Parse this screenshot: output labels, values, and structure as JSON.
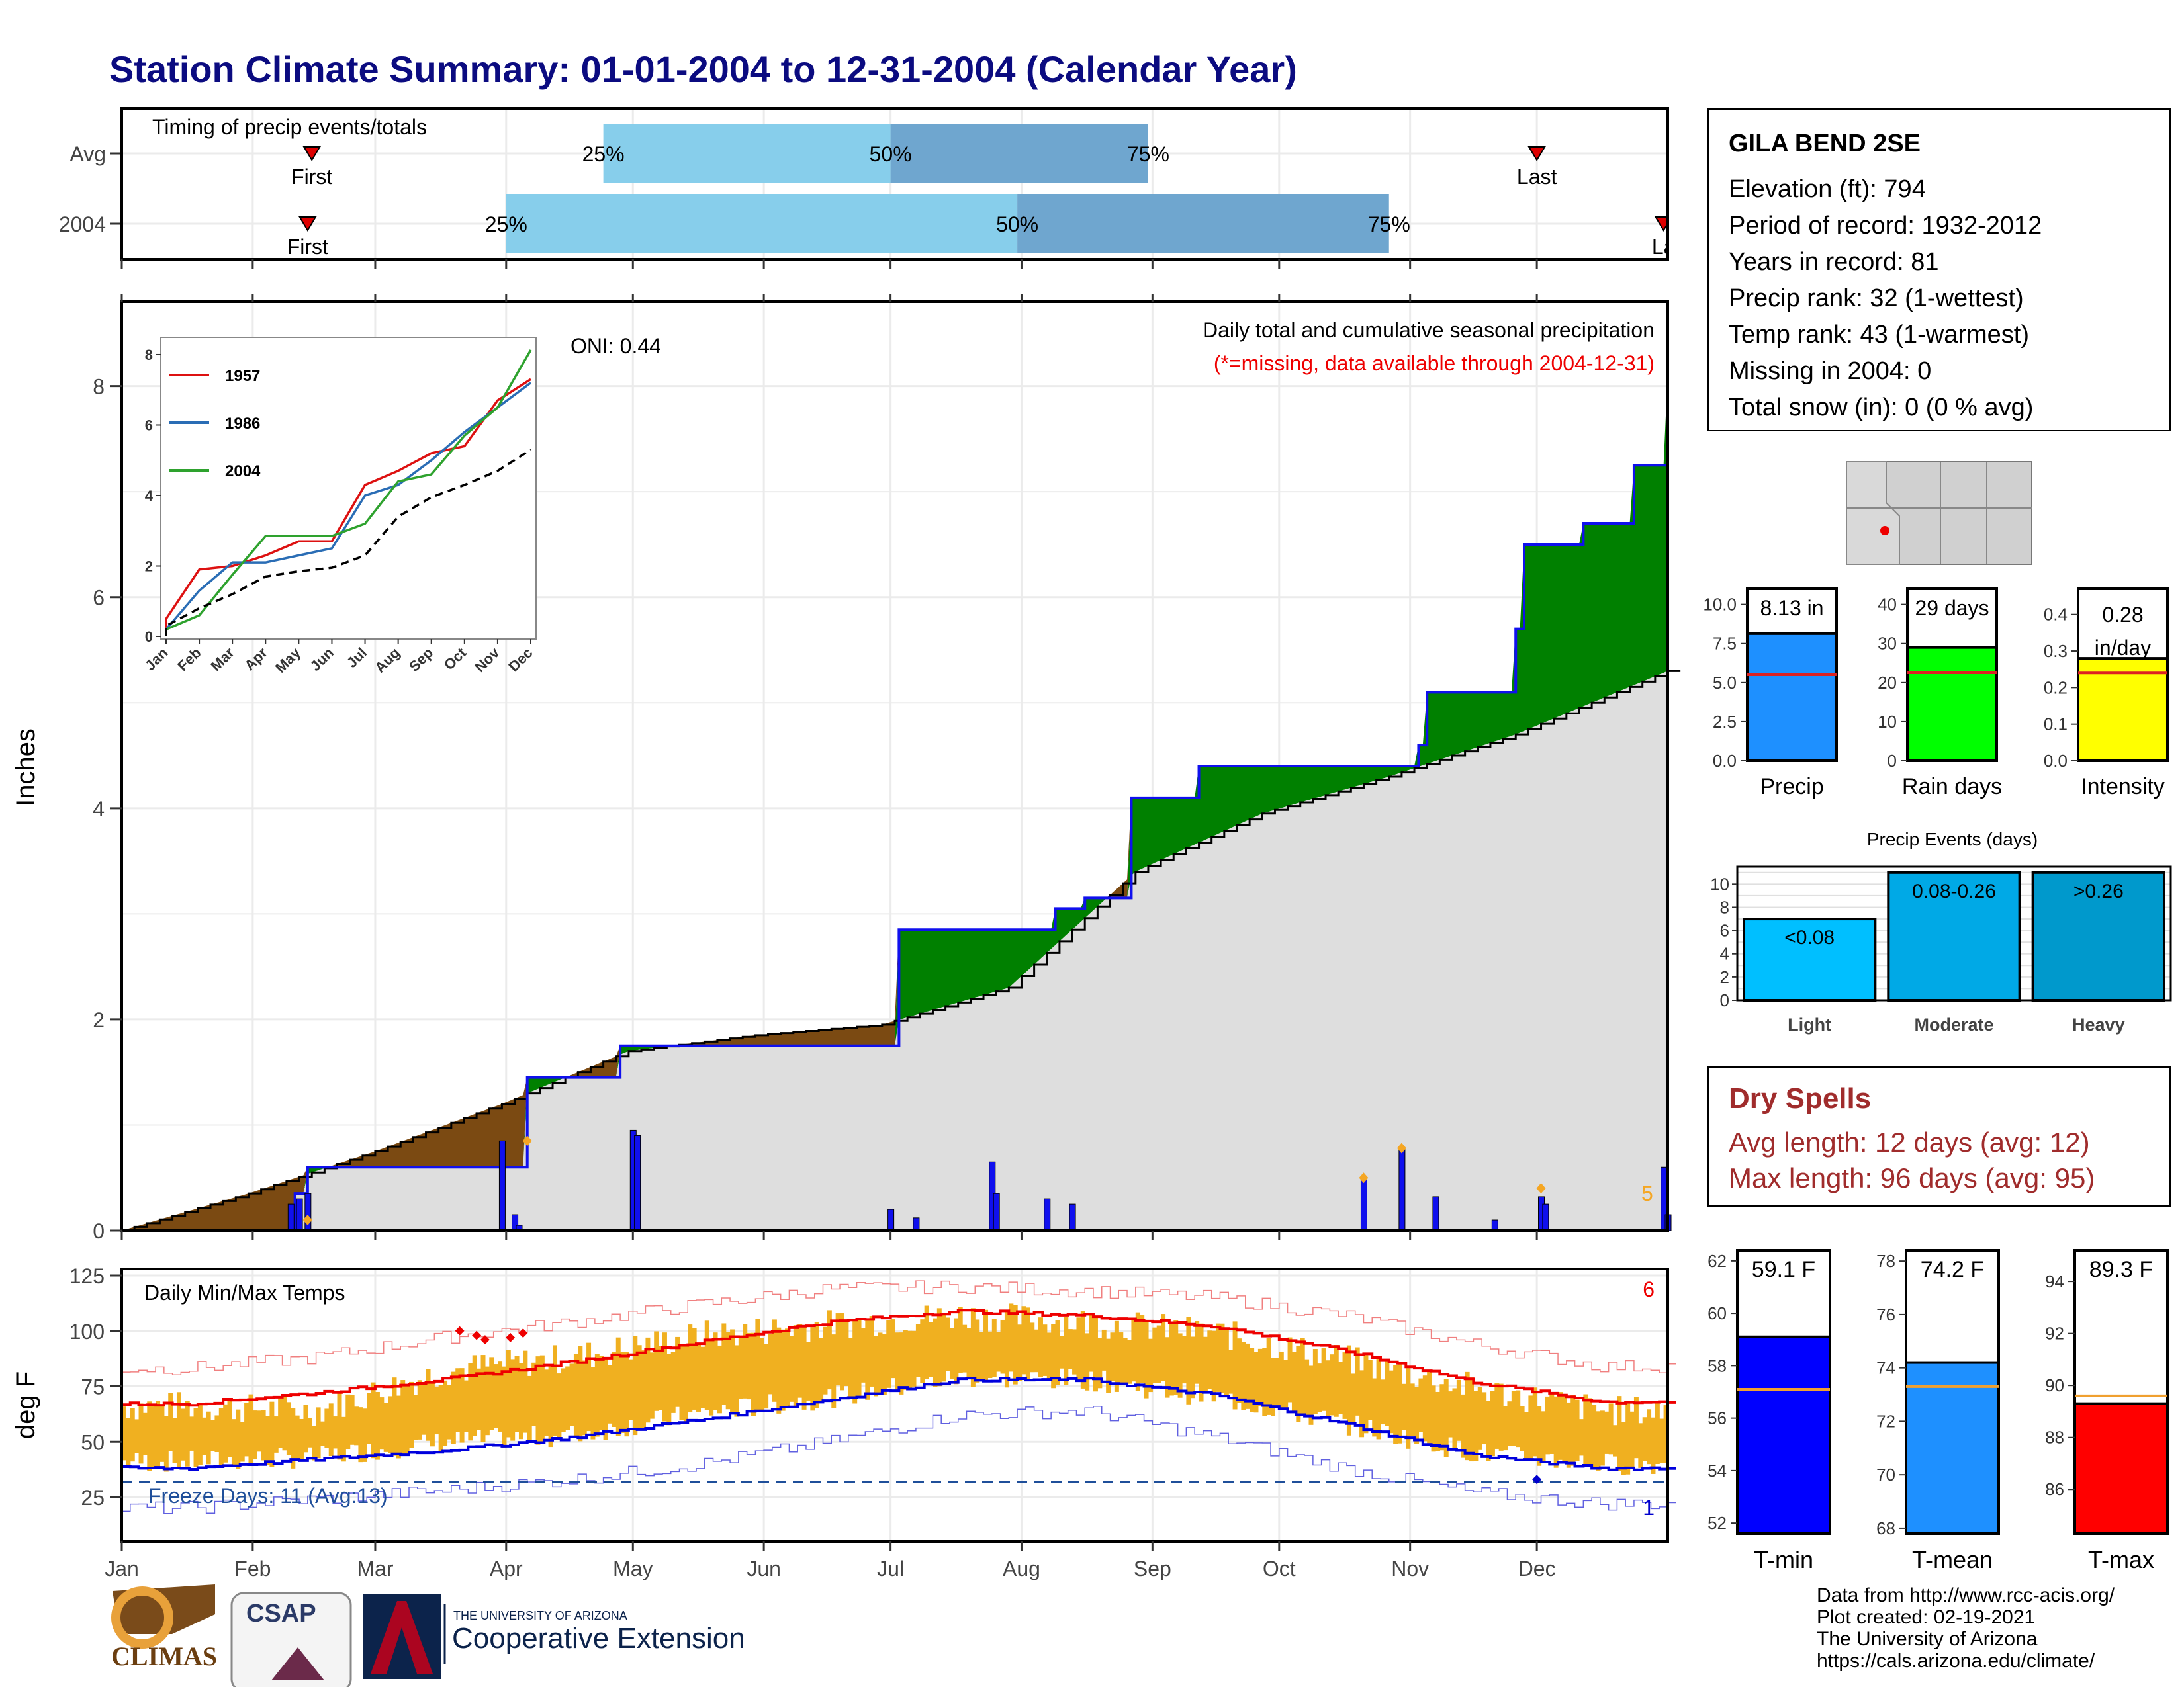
{
  "title": "Station Climate Summary: 01-01-2004 to 12-31-2004 (Calendar Year)",
  "colors": {
    "title": "#0b0b80",
    "green": "#008000",
    "brown": "#7b4a12",
    "gray_fill": "#dedede",
    "blue_bar": "#1010ee",
    "light_blue": "#87ceeb",
    "mid_blue": "#6fa6cf",
    "orange": "#f0b020",
    "red": "#ee0000",
    "navy": "#0000cd"
  },
  "timing": {
    "label": "Timing of precip events/totals",
    "rows": [
      {
        "name": "Avg",
        "first_label": "First",
        "last_label": "Last",
        "first": "Feb 15",
        "last": "Dec 1",
        "p25": "25%",
        "p50": "50%",
        "p75": "75%",
        "d25": "Apr 24",
        "d50": "Jul 1",
        "d75": "Aug 31"
      },
      {
        "name": "2004",
        "first_label": "First",
        "last_label": "La",
        "first": "Feb 14",
        "last": "Dec 31",
        "p25": "25%",
        "p50": "50%",
        "p75": "75%",
        "d25": "Apr 1",
        "d50": "Jul 31",
        "d75": "Oct 27"
      }
    ]
  },
  "station": {
    "name": "GILA BEND 2SE",
    "lines": [
      "Elevation (ft): 794",
      "Period of record: 1932-2012",
      "Years in record: 81",
      "Precip rank: 32 (1-wettest)",
      "Temp rank: 43 (1-warmest)",
      "Missing in 2004: 0",
      "Total snow (in): 0 (0 % avg)"
    ]
  },
  "precip_panel": {
    "ylabel": "Inches",
    "title_line1": "Daily total and cumulative seasonal precipitation",
    "title_line2": "(*=missing, data available through 2004-12-31)",
    "oni": "ONI: 0.44",
    "count_label": "5",
    "y_ticks": [
      "0",
      "2",
      "4",
      "6",
      "8"
    ]
  },
  "inset": {
    "y_ticks": [
      "0",
      "2",
      "4",
      "6",
      "8"
    ],
    "x_ticks": [
      "Jan",
      "Feb",
      "Mar",
      "Apr",
      "May",
      "Jun",
      "Jul",
      "Aug",
      "Sep",
      "Oct",
      "Nov",
      "Dec"
    ],
    "legend": [
      "1957",
      "1986",
      "2004"
    ]
  },
  "temp_panel": {
    "ylabel": "deg F",
    "title": "Daily Min/Max Temps",
    "freeze_label": "Freeze Days: 11 (Avg:13)",
    "hot_count": "6",
    "cold_count": "1",
    "y_ticks": [
      "25",
      "50",
      "75",
      "100",
      "125"
    ],
    "x_ticks": [
      "Jan",
      "Feb",
      "Mar",
      "Apr",
      "May",
      "Jun",
      "Jul",
      "Aug",
      "Sep",
      "Oct",
      "Nov",
      "Dec"
    ]
  },
  "summary_bars": {
    "precip": {
      "label": "Precip",
      "value_label": "8.13 in",
      "ticks": [
        "0.0",
        "2.5",
        "5.0",
        "7.5",
        "10.0"
      ]
    },
    "raindays": {
      "label": "Rain days",
      "value_label": "29 days",
      "ticks": [
        "0",
        "10",
        "20",
        "30",
        "40"
      ]
    },
    "intensity": {
      "label": "Intensity",
      "value_label": "0.28",
      "value_label2": "in/day",
      "ticks": [
        "0.0",
        "0.1",
        "0.2",
        "0.3",
        "0.4"
      ]
    }
  },
  "events": {
    "title": "Precip Events (days)",
    "ticks": [
      "0",
      "2",
      "4",
      "6",
      "8",
      "10"
    ],
    "bars": [
      {
        "label": "Light",
        "value_label": "<0.08"
      },
      {
        "label": "Moderate",
        "value_label": "0.08-0.26"
      },
      {
        "label": "Heavy",
        "value_label": ">0.26"
      }
    ]
  },
  "dry_spells": {
    "title": "Dry Spells",
    "avg": "Avg length: 12 days (avg: 12)",
    "max": "Max length: 96 days (avg: 95)"
  },
  "temp_bars": {
    "tmin": {
      "label": "T-min",
      "value_label": "59.1 F",
      "ticks": [
        "52",
        "54",
        "56",
        "58",
        "60",
        "62"
      ]
    },
    "tmean": {
      "label": "T-mean",
      "value_label": "74.2 F",
      "ticks": [
        "68",
        "70",
        "72",
        "74",
        "76",
        "78"
      ]
    },
    "tmax": {
      "label": "T-max",
      "value_label": "89.3 F",
      "ticks": [
        "86",
        "88",
        "90",
        "92",
        "94"
      ]
    }
  },
  "footer": [
    "Data from http://www.rcc-acis.org/",
    "Plot created: 02-19-2021",
    "The University of Arizona",
    "https://cals.arizona.edu/climate/"
  ],
  "logos": {
    "climas": "CLIMAS",
    "csap": "CSAP",
    "ua_line1": "THE UNIVERSITY OF ARIZONA",
    "ua_line2": "Cooperative Extension"
  },
  "chart_data": [
    {
      "type": "line",
      "title": "Daily total and cumulative seasonal precipitation",
      "ylabel": "Inches",
      "ylim": [
        0,
        8.8
      ],
      "series": [
        {
          "name": "2004 cumulative",
          "x_day": [
            0,
            41,
            44,
            90,
            96,
            118,
            120,
            182,
            184,
            219,
            221,
            226,
            228,
            238,
            239,
            251,
            255,
            307,
            309,
            330,
            332,
            344,
            346,
            356,
            358,
            366
          ],
          "values": [
            0,
            0.35,
            0.6,
            0.6,
            1.45,
            1.75,
            1.75,
            1.75,
            2.85,
            2.85,
            3.05,
            3.05,
            3.15,
            3.15,
            4.1,
            4.1,
            4.4,
            4.6,
            5.1,
            5.7,
            6.5,
            6.5,
            6.7,
            6.7,
            7.25,
            8.13
          ]
        },
        {
          "name": "Average cumulative",
          "x_day": [
            0,
            30,
            60,
            90,
            120,
            150,
            180,
            210,
            240,
            270,
            300,
            330,
            366
          ],
          "values": [
            0,
            0.35,
            0.75,
            1.2,
            1.7,
            1.85,
            1.95,
            2.3,
            3.4,
            3.95,
            4.3,
            4.7,
            5.3
          ]
        }
      ],
      "daily_bars": {
        "x_day": [
          40,
          42,
          44,
          90,
          93,
          94,
          121,
          122,
          182,
          188,
          206,
          207,
          219,
          225,
          294,
          303,
          311,
          325,
          336,
          337,
          365,
          366
        ],
        "values": [
          0.25,
          0.3,
          0.35,
          0.85,
          0.15,
          0.05,
          0.95,
          0.9,
          0.2,
          0.12,
          0.65,
          0.35,
          0.3,
          0.25,
          0.5,
          0.78,
          0.32,
          0.1,
          0.32,
          0.25,
          0.6,
          0.15
        ]
      }
    },
    {
      "type": "line",
      "title": "",
      "x": [
        "Jan",
        "Feb",
        "Mar",
        "Apr",
        "May",
        "Jun",
        "Jul",
        "Aug",
        "Sep",
        "Oct",
        "Nov",
        "Dec"
      ],
      "ylim": [
        0,
        8.2
      ],
      "series": [
        {
          "name": "1957",
          "values": [
            0.5,
            1.9,
            2.0,
            2.3,
            2.7,
            2.7,
            4.3,
            4.7,
            5.2,
            5.4,
            6.7,
            7.3
          ]
        },
        {
          "name": "1986",
          "values": [
            0.2,
            1.3,
            2.1,
            2.1,
            2.3,
            2.5,
            4.0,
            4.3,
            5.0,
            5.8,
            6.5,
            7.2
          ]
        },
        {
          "name": "2004",
          "values": [
            0.2,
            0.6,
            1.75,
            2.85,
            2.85,
            2.85,
            3.2,
            4.4,
            4.6,
            5.7,
            6.5,
            8.13
          ]
        },
        {
          "name": "Average",
          "values": [
            0.3,
            0.8,
            1.2,
            1.7,
            1.85,
            1.95,
            2.3,
            3.4,
            3.95,
            4.3,
            4.7,
            5.3
          ]
        }
      ]
    },
    {
      "type": "line",
      "title": "Daily Min/Max Temps",
      "ylabel": "deg F",
      "ylim": [
        5,
        128
      ],
      "x": [
        "Jan",
        "Feb",
        "Mar",
        "Apr",
        "May",
        "Jun",
        "Jul",
        "Aug",
        "Sep",
        "Oct",
        "Nov",
        "Dec"
      ],
      "series": [
        {
          "name": "Avg max",
          "values": [
            67,
            72,
            78,
            86,
            95,
            104,
            109,
            107,
            102,
            91,
            77,
            68
          ]
        },
        {
          "name": "Avg min",
          "values": [
            38,
            42,
            46,
            52,
            60,
            69,
            78,
            78,
            71,
            58,
            44,
            38
          ]
        },
        {
          "name": "Record max",
          "values": [
            83,
            88,
            97,
            104,
            112,
            119,
            120,
            118,
            115,
            107,
            94,
            84
          ]
        },
        {
          "name": "Record min",
          "values": [
            20,
            24,
            28,
            33,
            40,
            50,
            62,
            64,
            52,
            38,
            27,
            22
          ]
        },
        {
          "name": "2004 max",
          "values": [
            66,
            64,
            82,
            88,
            98,
            103,
            107,
            104,
            99,
            87,
            74,
            64
          ]
        },
        {
          "name": "2004 min",
          "values": [
            41,
            43,
            50,
            53,
            63,
            70,
            79,
            78,
            70,
            58,
            45,
            40
          ]
        }
      ],
      "freeze_line": 32
    },
    {
      "type": "bar",
      "categories": [
        "Precip",
        "Rain days",
        "Intensity"
      ],
      "series": [
        {
          "name": "2004",
          "values": [
            8.13,
            29,
            0.28
          ]
        },
        {
          "name": "avg",
          "values": [
            5.5,
            22.5,
            0.24
          ]
        }
      ]
    },
    {
      "type": "bar",
      "title": "Precip Events (days)",
      "categories": [
        "Light",
        "Moderate",
        "Heavy"
      ],
      "values": [
        7,
        11,
        11
      ],
      "ylim": [
        0,
        11.5
      ]
    },
    {
      "type": "bar",
      "categories": [
        "T-min",
        "T-mean",
        "T-max"
      ],
      "series": [
        {
          "name": "2004",
          "values": [
            59.1,
            74.2,
            89.3
          ]
        },
        {
          "name": "avg",
          "values": [
            57.1,
            73.3,
            89.6
          ]
        }
      ]
    }
  ]
}
